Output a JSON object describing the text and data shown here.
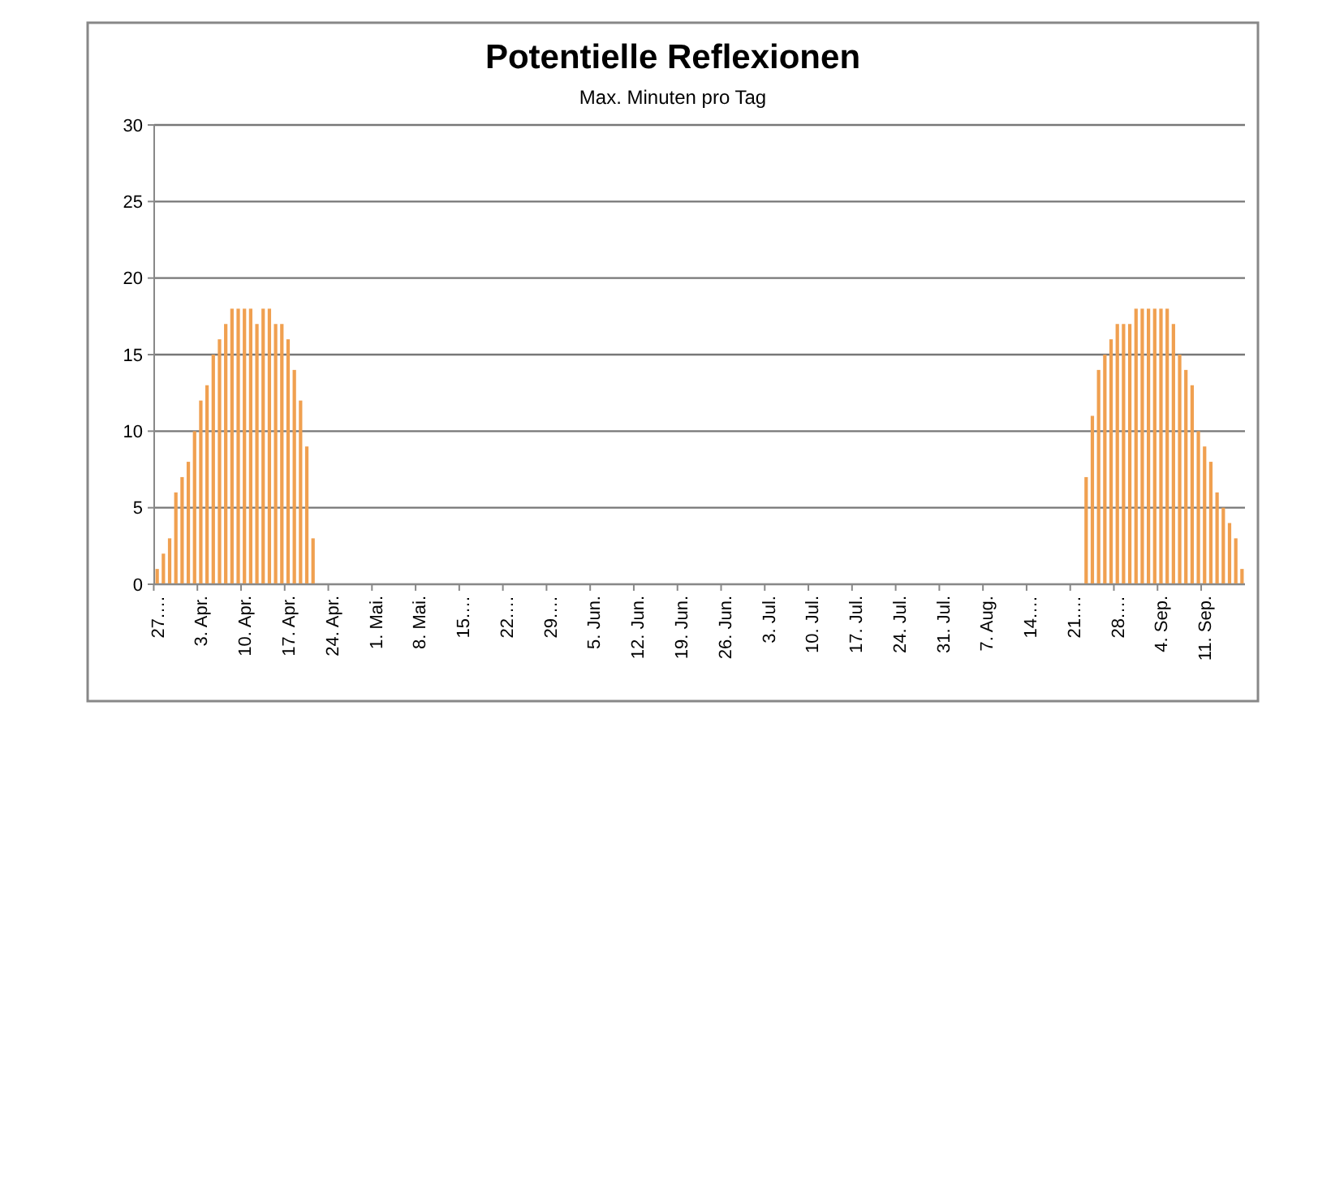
{
  "chart_data": {
    "type": "bar",
    "title": "Potentielle Reflexionen",
    "subtitle": "Max. Minuten pro Tag",
    "categories": [
      "27.…",
      null,
      null,
      null,
      null,
      null,
      null,
      "3. Apr.",
      null,
      null,
      null,
      null,
      null,
      null,
      "10. Apr.",
      null,
      null,
      null,
      null,
      null,
      null,
      "17. Apr.",
      null,
      null,
      null,
      null,
      null,
      null,
      "24. Apr.",
      null,
      null,
      null,
      null,
      null,
      null,
      "1. Mai.",
      null,
      null,
      null,
      null,
      null,
      null,
      "8. Mai.",
      null,
      null,
      null,
      null,
      null,
      null,
      "15.…",
      null,
      null,
      null,
      null,
      null,
      null,
      "22.…",
      null,
      null,
      null,
      null,
      null,
      null,
      "29.…",
      null,
      null,
      null,
      null,
      null,
      null,
      "5. Jun.",
      null,
      null,
      null,
      null,
      null,
      null,
      "12. Jun.",
      null,
      null,
      null,
      null,
      null,
      null,
      "19. Jun.",
      null,
      null,
      null,
      null,
      null,
      null,
      "26. Jun.",
      null,
      null,
      null,
      null,
      null,
      null,
      "3. Jul.",
      null,
      null,
      null,
      null,
      null,
      null,
      "10. Jul.",
      null,
      null,
      null,
      null,
      null,
      null,
      "17. Jul.",
      null,
      null,
      null,
      null,
      null,
      null,
      "24. Jul.",
      null,
      null,
      null,
      null,
      null,
      null,
      "31. Jul.",
      null,
      null,
      null,
      null,
      null,
      null,
      "7. Aug.",
      null,
      null,
      null,
      null,
      null,
      null,
      "14.…",
      null,
      null,
      null,
      null,
      null,
      null,
      "21.…",
      null,
      null,
      null,
      null,
      null,
      null,
      "28.…",
      null,
      null,
      null,
      null,
      null,
      null,
      "4. Sep.",
      null,
      null,
      null,
      null,
      null,
      null,
      "11. Sep.",
      null,
      null,
      null,
      null,
      null,
      null
    ],
    "values": [
      1,
      2,
      3,
      6,
      7,
      8,
      10,
      12,
      13,
      15,
      16,
      17,
      18,
      18,
      18,
      18,
      17,
      18,
      18,
      17,
      17,
      16,
      14,
      12,
      9,
      3,
      0,
      0,
      0,
      0,
      0,
      0,
      0,
      0,
      0,
      0,
      0,
      0,
      0,
      0,
      0,
      0,
      0,
      0,
      0,
      0,
      0,
      0,
      0,
      0,
      0,
      0,
      0,
      0,
      0,
      0,
      0,
      0,
      0,
      0,
      0,
      0,
      0,
      0,
      0,
      0,
      0,
      0,
      0,
      0,
      0,
      0,
      0,
      0,
      0,
      0,
      0,
      0,
      0,
      0,
      0,
      0,
      0,
      0,
      0,
      0,
      0,
      0,
      0,
      0,
      0,
      0,
      0,
      0,
      0,
      0,
      0,
      0,
      0,
      0,
      0,
      0,
      0,
      0,
      0,
      0,
      0,
      0,
      0,
      0,
      0,
      0,
      0,
      0,
      0,
      0,
      0,
      0,
      0,
      0,
      0,
      0,
      0,
      0,
      0,
      0,
      0,
      0,
      0,
      0,
      0,
      0,
      0,
      0,
      0,
      0,
      0,
      0,
      0,
      0,
      0,
      0,
      0,
      0,
      0,
      0,
      0,
      0,
      0,
      7,
      11,
      14,
      15,
      16,
      17,
      17,
      17,
      18,
      18,
      18,
      18,
      18,
      18,
      17,
      15,
      14,
      13,
      10,
      9,
      8,
      6,
      5,
      4,
      3,
      1
    ],
    "color": "#f0a050",
    "ylim": [
      0,
      30
    ],
    "yticks": [
      0,
      5,
      10,
      15,
      20,
      25,
      30
    ],
    "grid": "y"
  }
}
